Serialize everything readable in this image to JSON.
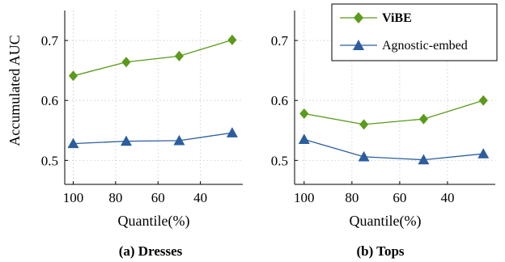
{
  "chart_data": [
    {
      "type": "line",
      "caption": "(a) Dresses",
      "x": [
        100,
        75,
        50,
        25
      ],
      "xlabel": "Quantile(%)",
      "ylabel": "Accumulated AUC",
      "xticks": [
        "100",
        "80",
        "60",
        "40"
      ],
      "yticks": [
        "0.5",
        "0.6",
        "0.7"
      ],
      "xlim": [
        104,
        20
      ],
      "ylim": [
        0.46,
        0.75
      ],
      "grid": true,
      "series": [
        {
          "name": "ViBE",
          "color": "#5b9a1a",
          "marker": "diamond",
          "values": [
            0.641,
            0.664,
            0.674,
            0.701
          ]
        },
        {
          "name": "Agnostic-embed",
          "color": "#2c5e9e",
          "marker": "triangle",
          "values": [
            0.528,
            0.532,
            0.533,
            0.546
          ]
        }
      ]
    },
    {
      "type": "line",
      "caption": "(b) Tops",
      "x": [
        100,
        75,
        50,
        25
      ],
      "xlabel": "Quantile(%)",
      "ylabel": "",
      "xticks": [
        "100",
        "80",
        "60",
        "40"
      ],
      "yticks": [
        "0.5",
        "0.6",
        "0.7"
      ],
      "xlim": [
        104,
        20
      ],
      "ylim": [
        0.46,
        0.75
      ],
      "grid": true,
      "legend_position": "top-right",
      "series": [
        {
          "name": "ViBE",
          "color": "#5b9a1a",
          "marker": "diamond",
          "values": [
            0.578,
            0.56,
            0.569,
            0.6
          ]
        },
        {
          "name": "Agnostic-embed",
          "color": "#2c5e9e",
          "marker": "triangle",
          "values": [
            0.535,
            0.506,
            0.501,
            0.511
          ]
        }
      ]
    }
  ]
}
